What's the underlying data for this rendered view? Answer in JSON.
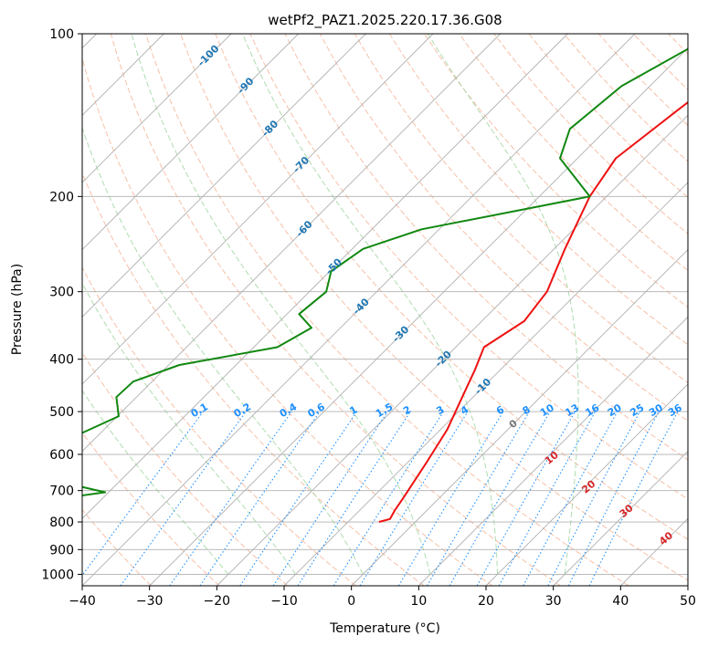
{
  "chart_data": {
    "type": "line",
    "title": "wetPf2_PAZ1.2025.220.17.36.G08",
    "xlabel": "Temperature (°C)",
    "ylabel": "Pressure (hPa)",
    "xlim": [
      -40,
      50
    ],
    "ylim": [
      1050,
      100
    ],
    "y_scale": "log",
    "grid": true,
    "x_ticks": [
      -40,
      -30,
      -20,
      -10,
      0,
      10,
      20,
      30,
      40,
      50
    ],
    "y_ticks": [
      100,
      200,
      300,
      400,
      500,
      600,
      700,
      800,
      900,
      1000
    ],
    "colors": {
      "temperature": "#ee1111",
      "dewpoint": "#118811",
      "isotherm_label": "#1f77b4",
      "mixing_ratio": "#1e90ff",
      "moist_adiabat_label": "#d62728",
      "dry_adiabat": "#f4a582",
      "moist_adiabat": "#a6d8a6",
      "grid": "#b0b0b0"
    },
    "isotherm_labels": [
      "-100",
      "-90",
      "-80",
      "-70",
      "-60",
      "-50",
      "-40",
      "-30",
      "-20",
      "-10"
    ],
    "mixing_ratio_labels": [
      "0.1",
      "0.2",
      "0.4",
      "0.6",
      "1",
      "1.5",
      "2",
      "3",
      "4",
      "6",
      "8",
      "10",
      "13",
      "16",
      "20",
      "25",
      "30",
      "36"
    ],
    "moist_adiabat_labels": [
      "0",
      "10",
      "20",
      "30",
      "40"
    ],
    "series": [
      {
        "name": "temperature",
        "points": [
          [
            -20.2,
            100
          ],
          [
            -20.8,
            120
          ],
          [
            -22.4,
            140
          ],
          [
            -24.3,
            170
          ],
          [
            -22.5,
            200
          ],
          [
            -18.4,
            250
          ],
          [
            -14.7,
            300
          ],
          [
            -13.7,
            340
          ],
          [
            -15.8,
            380
          ],
          [
            -13.7,
            420
          ],
          [
            -11.6,
            470
          ],
          [
            -9.0,
            540
          ],
          [
            -7.2,
            620
          ],
          [
            -5.4,
            720
          ],
          [
            -4.8,
            760
          ],
          [
            -4.2,
            790
          ],
          [
            -5.4,
            800
          ]
        ]
      },
      {
        "name": "dewpoint",
        "points": [
          [
            -28.1,
            100
          ],
          [
            -34.2,
            125
          ],
          [
            -35.5,
            150
          ],
          [
            -32.6,
            170
          ],
          [
            -22.5,
            200
          ],
          [
            -42.6,
            230
          ],
          [
            -48.4,
            250
          ],
          [
            -49.8,
            275
          ],
          [
            -47.5,
            300
          ],
          [
            -48.2,
            330
          ],
          [
            -44.3,
            350
          ],
          [
            -46.5,
            380
          ],
          [
            -58.4,
            410
          ],
          [
            -62.8,
            440
          ],
          [
            -63.0,
            470
          ],
          [
            -59.8,
            510
          ],
          [
            -63.7,
            560
          ],
          [
            -65.0,
            600
          ],
          [
            -66.0,
            640
          ],
          [
            -66.4,
            670
          ],
          [
            -63.1,
            680
          ],
          [
            -54.5,
            690
          ],
          [
            -50.5,
            705
          ],
          [
            -58.0,
            730
          ],
          [
            -61.0,
            745
          ],
          [
            -58.0,
            760
          ],
          [
            -58.8,
            780
          ],
          [
            -62.0,
            795
          ],
          [
            -56.0,
            805
          ],
          [
            -53.5,
            805
          ]
        ]
      }
    ]
  }
}
